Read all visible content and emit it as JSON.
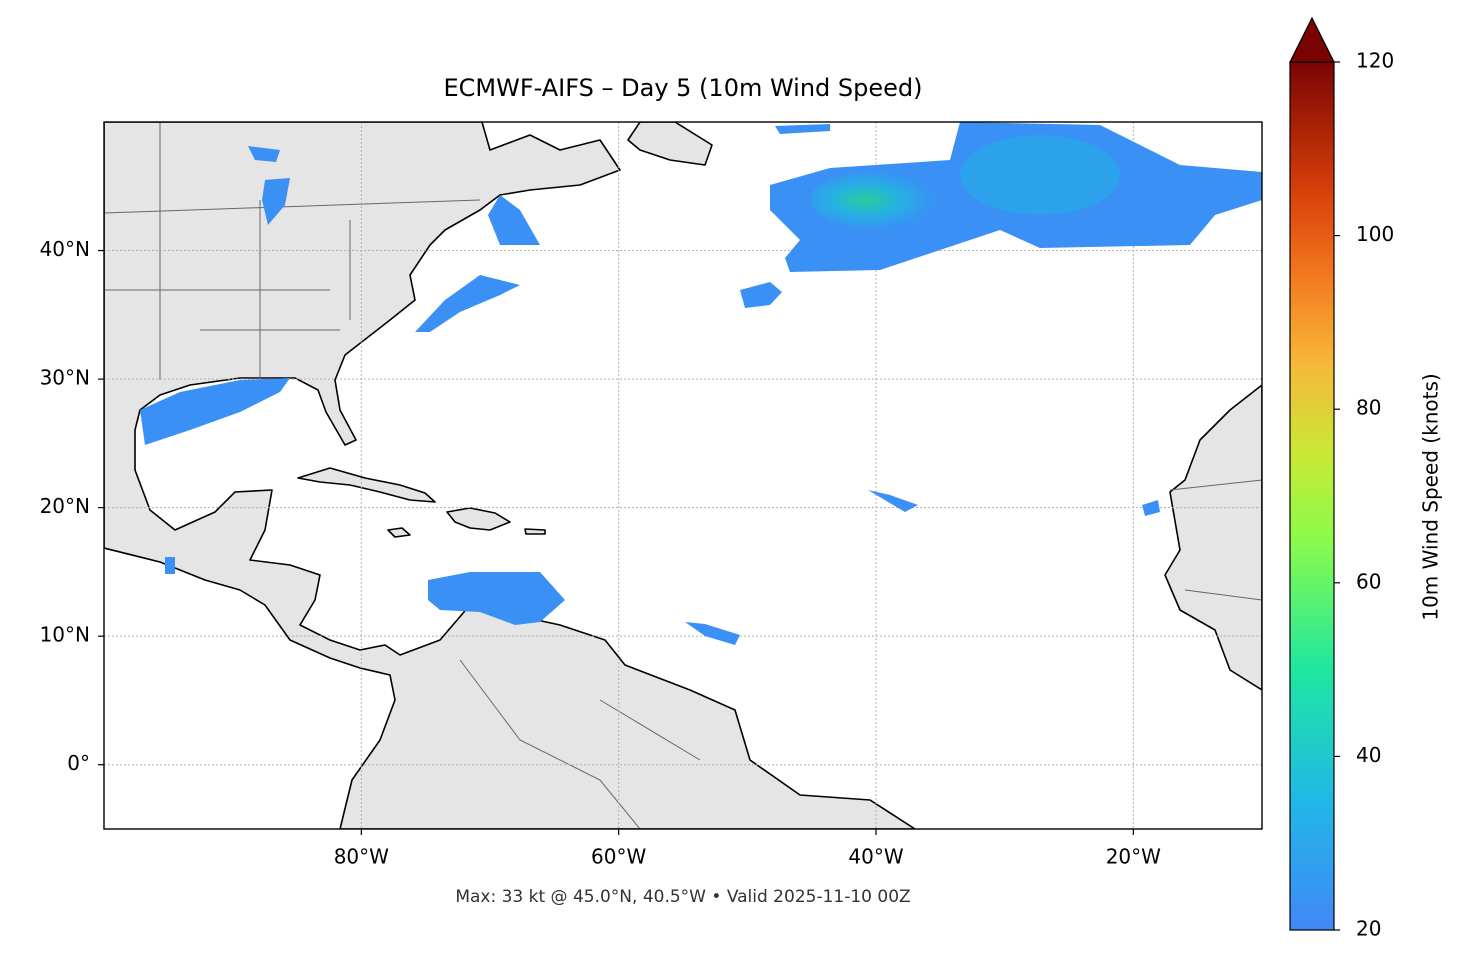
{
  "chart_data": {
    "type": "map",
    "title": "ECMWF-AIFS – Day 5 (10m Wind Speed)",
    "footer": "Max: 33 kt @ 45.0°N, 40.5°W • Valid 2025-11-10 00Z",
    "xlim": [
      -100,
      -10
    ],
    "ylim": [
      -5,
      50
    ],
    "xticks": [
      {
        "value": -80,
        "label": "80°W"
      },
      {
        "value": -60,
        "label": "60°W"
      },
      {
        "value": -40,
        "label": "40°W"
      },
      {
        "value": -20,
        "label": "20°W"
      }
    ],
    "yticks": [
      {
        "value": 0,
        "label": "0°"
      },
      {
        "value": 10,
        "label": "10°N"
      },
      {
        "value": 20,
        "label": "20°N"
      },
      {
        "value": 30,
        "label": "30°N"
      },
      {
        "value": 40,
        "label": "40°N"
      }
    ],
    "grid": true,
    "colorbar": {
      "label": "10m Wind Speed (knots)",
      "lim": [
        20,
        120
      ],
      "ticks": [
        20,
        40,
        60,
        80,
        100,
        120
      ],
      "extend": "max"
    }
  }
}
